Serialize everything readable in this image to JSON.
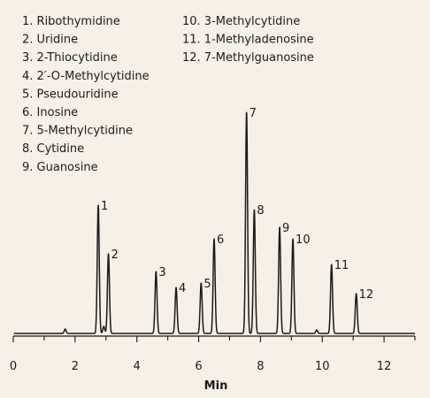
{
  "chart_data": {
    "type": "line",
    "title": "",
    "xlabel": "Min",
    "ylabel": "",
    "xlim": [
      0,
      13
    ],
    "x_major_ticks": [
      0,
      2,
      4,
      6,
      8,
      10,
      12
    ],
    "x_tick_labels": [
      "0",
      "2",
      "4",
      "6",
      "8",
      "10",
      "12"
    ],
    "grid": false,
    "legend_placement": "top-left",
    "legend": [
      {
        "text": "1. Ribothymidine"
      },
      {
        "text": "2. Uridine"
      },
      {
        "text": "3. 2-Thiocytidine"
      },
      {
        "text": "4. 2′-O-Methylcytidine"
      },
      {
        "text": "5. Pseudouridine"
      },
      {
        "text": "6. Inosine"
      },
      {
        "text": "7. 5-Methylcytidine"
      },
      {
        "text": "8. Cytidine"
      },
      {
        "text": "9. Guanosine"
      },
      {
        "text": "10. 3-Methylcytidine"
      },
      {
        "text": "11. 1-Methyladenosine"
      },
      {
        "text": "12. 7-Methylguanosine"
      }
    ],
    "baseline": 0,
    "peaks": [
      {
        "label": "1",
        "time": 2.75,
        "height": 145
      },
      {
        "label": "2",
        "time": 3.08,
        "height": 90
      },
      {
        "label": "3",
        "time": 4.62,
        "height": 70
      },
      {
        "label": "4",
        "time": 5.27,
        "height": 52
      },
      {
        "label": "5",
        "time": 6.08,
        "height": 57
      },
      {
        "label": "6",
        "time": 6.5,
        "height": 107
      },
      {
        "label": "7",
        "time": 7.55,
        "height": 250
      },
      {
        "label": "8",
        "time": 7.8,
        "height": 140
      },
      {
        "label": "9",
        "time": 8.62,
        "height": 120
      },
      {
        "label": "10",
        "time": 9.05,
        "height": 107
      },
      {
        "label": "11",
        "time": 10.3,
        "height": 78
      },
      {
        "label": "12",
        "time": 11.1,
        "height": 45
      }
    ],
    "minor_peaks": [
      {
        "time": 1.68,
        "height": 5
      },
      {
        "time": 2.93,
        "height": 8
      },
      {
        "time": 9.82,
        "height": 4
      }
    ],
    "line_color": "#1a1a1a"
  }
}
